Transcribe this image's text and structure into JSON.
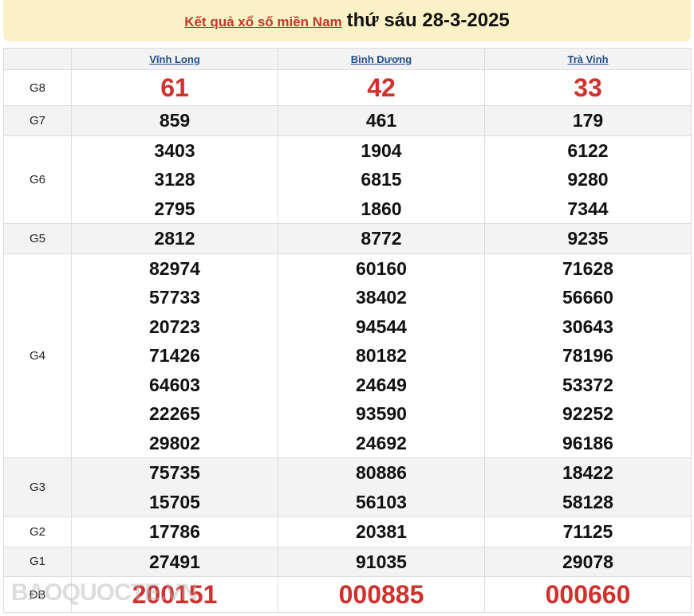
{
  "header": {
    "link": "Kết quả xổ số miền Nam",
    "date": "thứ sáu 28-3-2025"
  },
  "provinces": [
    "Vĩnh Long",
    "Bình Dương",
    "Trà Vinh"
  ],
  "prizes": [
    {
      "label": "G8",
      "values": [
        [
          "61"
        ],
        [
          "42"
        ],
        [
          "33"
        ]
      ]
    },
    {
      "label": "G7",
      "values": [
        [
          "859"
        ],
        [
          "461"
        ],
        [
          "179"
        ]
      ]
    },
    {
      "label": "G6",
      "values": [
        [
          "3403",
          "3128",
          "2795"
        ],
        [
          "1904",
          "6815",
          "1860"
        ],
        [
          "6122",
          "9280",
          "7344"
        ]
      ]
    },
    {
      "label": "G5",
      "values": [
        [
          "2812"
        ],
        [
          "8772"
        ],
        [
          "9235"
        ]
      ]
    },
    {
      "label": "G4",
      "values": [
        [
          "82974",
          "57733",
          "20723",
          "71426",
          "64603",
          "22265",
          "29802"
        ],
        [
          "60160",
          "38402",
          "94544",
          "80182",
          "24649",
          "93590",
          "24692"
        ],
        [
          "71628",
          "56660",
          "30643",
          "78196",
          "53372",
          "92252",
          "96186"
        ]
      ]
    },
    {
      "label": "G3",
      "values": [
        [
          "75735",
          "15705"
        ],
        [
          "80886",
          "56103"
        ],
        [
          "18422",
          "58128"
        ]
      ]
    },
    {
      "label": "G2",
      "values": [
        [
          "17786"
        ],
        [
          "20381"
        ],
        [
          "71125"
        ]
      ]
    },
    {
      "label": "G1",
      "values": [
        [
          "27491"
        ],
        [
          "91035"
        ],
        [
          "29078"
        ]
      ]
    },
    {
      "label": "ĐB",
      "values": [
        [
          "200151"
        ],
        [
          "000885"
        ],
        [
          "000660"
        ]
      ]
    }
  ],
  "watermark": "BAOQUOCTE.VN",
  "colors": {
    "special": "#d0312d",
    "title_bg": "#fbf1c6",
    "link": "#1f4e8c"
  }
}
